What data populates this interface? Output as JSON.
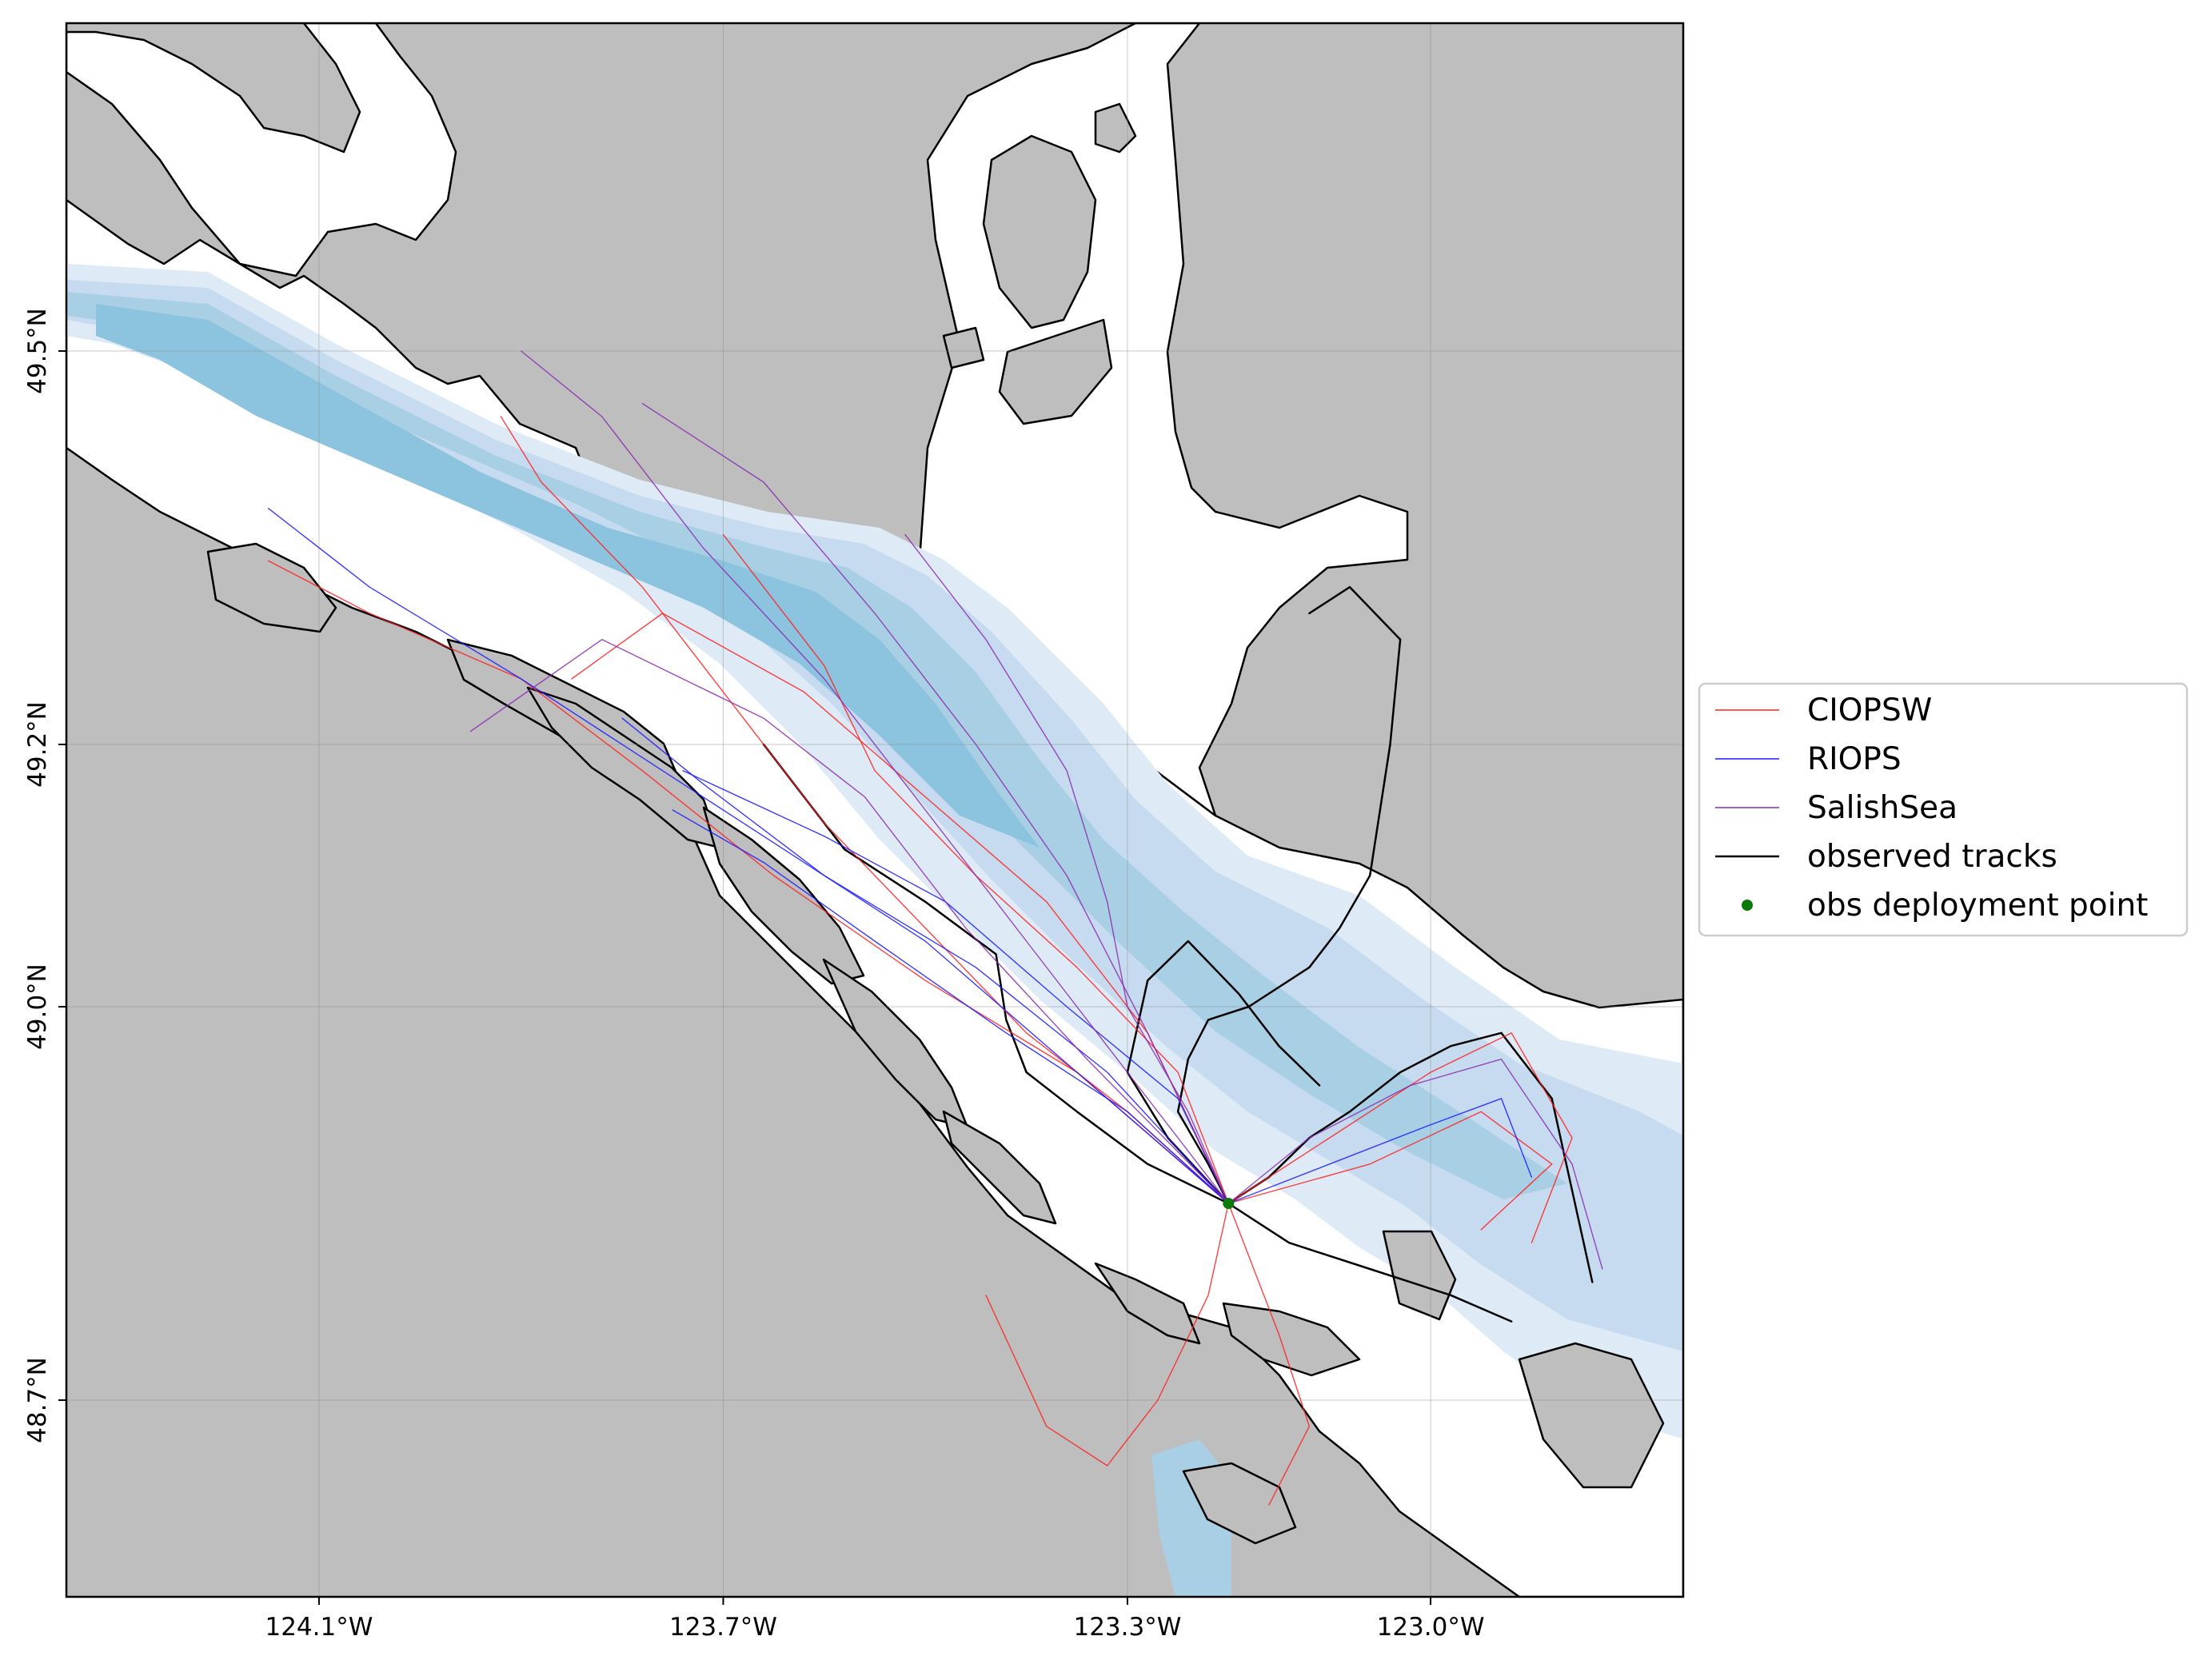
{
  "chart_data": {
    "type": "map",
    "projection": "geographic",
    "extent": {
      "lon": [
        -124.35,
        -122.75
      ],
      "lat": [
        48.55,
        49.75
      ]
    },
    "x_ticks": [
      {
        "value": -124.1,
        "label": "124.1°W"
      },
      {
        "value": -123.7,
        "label": "123.7°W"
      },
      {
        "value": -123.3,
        "label": "123.3°W"
      },
      {
        "value": -123.0,
        "label": "123.0°W"
      }
    ],
    "y_ticks": [
      {
        "value": 49.5,
        "label": "49.5°N"
      },
      {
        "value": 49.2,
        "label": "49.2°N"
      },
      {
        "value": 49.0,
        "label": "49.0°N"
      },
      {
        "value": 48.7,
        "label": "48.7°N"
      }
    ],
    "grid": true,
    "legend_position": "right",
    "legend": [
      {
        "label": "CIOPSW",
        "kind": "line",
        "color": "#ff2020"
      },
      {
        "label": "RIOPS",
        "kind": "line",
        "color": "#1a1aff"
      },
      {
        "label": "SalishSea",
        "kind": "line",
        "color": "#8a2bb0"
      },
      {
        "label": "observed tracks",
        "kind": "line",
        "color": "#000000"
      },
      {
        "label": "obs deployment point",
        "kind": "point",
        "color": "#0a7a0a"
      }
    ],
    "colors": {
      "land": "#bebebe",
      "coast": "#000000",
      "bathymetry": [
        "#f4f9ff",
        "#deebf7",
        "#c6dbef",
        "#a9cfe5",
        "#8cc3df"
      ]
    },
    "deployment_point": {
      "lon": -123.2,
      "lat": 48.85
    },
    "series": [
      {
        "name": "observed tracks",
        "color": "#000000",
        "tracks": [
          [
            [
              -123.2,
              48.85
            ],
            [
              -123.22,
              48.88
            ],
            [
              -123.25,
              48.92
            ],
            [
              -123.24,
              48.96
            ],
            [
              -123.22,
              48.99
            ],
            [
              -123.18,
              49.0
            ],
            [
              -123.12,
              49.03
            ],
            [
              -123.09,
              49.06
            ],
            [
              -123.06,
              49.1
            ],
            [
              -123.04,
              49.2
            ],
            [
              -123.03,
              49.28
            ],
            [
              -123.08,
              49.32
            ],
            [
              -123.12,
              49.3
            ]
          ],
          [
            [
              -123.2,
              48.85
            ],
            [
              -123.16,
              48.87
            ],
            [
              -123.12,
              48.9
            ],
            [
              -123.08,
              48.92
            ],
            [
              -123.03,
              48.95
            ],
            [
              -122.98,
              48.97
            ],
            [
              -122.93,
              48.98
            ],
            [
              -122.88,
              48.93
            ],
            [
              -122.86,
              48.86
            ],
            [
              -122.84,
              48.79
            ]
          ],
          [
            [
              -123.2,
              48.85
            ],
            [
              -123.28,
              48.88
            ],
            [
              -123.35,
              48.92
            ],
            [
              -123.4,
              48.95
            ],
            [
              -123.42,
              48.99
            ],
            [
              -123.43,
              49.04
            ],
            [
              -123.5,
              49.08
            ],
            [
              -123.58,
              49.12
            ],
            [
              -123.62,
              49.16
            ],
            [
              -123.66,
              49.2
            ]
          ],
          [
            [
              -123.2,
              48.85
            ],
            [
              -123.14,
              48.82
            ],
            [
              -123.06,
              48.8
            ],
            [
              -122.98,
              48.78
            ],
            [
              -122.92,
              48.76
            ]
          ],
          [
            [
              -123.2,
              48.85
            ],
            [
              -123.26,
              48.9
            ],
            [
              -123.3,
              48.95
            ],
            [
              -123.28,
              49.02
            ],
            [
              -123.24,
              49.05
            ],
            [
              -123.19,
              49.01
            ],
            [
              -123.15,
              48.97
            ],
            [
              -123.11,
              48.94
            ]
          ]
        ]
      },
      {
        "name": "CIOPSW",
        "color": "#ff2020",
        "tracks": [
          [
            [
              -123.2,
              48.85
            ],
            [
              -123.3,
              48.92
            ],
            [
              -123.4,
              48.98
            ],
            [
              -123.5,
              49.06
            ],
            [
              -123.6,
              49.14
            ],
            [
              -123.68,
              49.22
            ],
            [
              -123.78,
              49.32
            ],
            [
              -123.88,
              49.4
            ],
            [
              -123.92,
              49.45
            ]
          ],
          [
            [
              -123.2,
              48.85
            ],
            [
              -123.25,
              48.95
            ],
            [
              -123.35,
              49.03
            ],
            [
              -123.45,
              49.1
            ],
            [
              -123.55,
              49.18
            ],
            [
              -123.6,
              49.26
            ],
            [
              -123.7,
              49.36
            ]
          ],
          [
            [
              -123.2,
              48.85
            ],
            [
              -123.1,
              48.9
            ],
            [
              -123.0,
              48.95
            ],
            [
              -122.92,
              48.98
            ],
            [
              -122.86,
              48.9
            ],
            [
              -122.9,
              48.82
            ]
          ],
          [
            [
              -123.2,
              48.85
            ],
            [
              -123.22,
              48.78
            ],
            [
              -123.27,
              48.7
            ],
            [
              -123.32,
              48.65
            ],
            [
              -123.38,
              48.68
            ],
            [
              -123.44,
              48.78
            ]
          ],
          [
            [
              -123.2,
              48.85
            ],
            [
              -123.35,
              48.95
            ],
            [
              -123.5,
              49.02
            ],
            [
              -123.65,
              49.1
            ],
            [
              -123.78,
              49.18
            ],
            [
              -123.9,
              49.25
            ],
            [
              -124.05,
              49.3
            ],
            [
              -124.15,
              49.34
            ]
          ],
          [
            [
              -123.2,
              48.85
            ],
            [
              -123.15,
              48.75
            ],
            [
              -123.12,
              48.68
            ],
            [
              -123.16,
              48.62
            ]
          ],
          [
            [
              -123.2,
              48.85
            ],
            [
              -123.28,
              48.98
            ],
            [
              -123.38,
              49.08
            ],
            [
              -123.5,
              49.16
            ],
            [
              -123.62,
              49.24
            ],
            [
              -123.76,
              49.3
            ],
            [
              -123.85,
              49.25
            ]
          ],
          [
            [
              -123.2,
              48.85
            ],
            [
              -123.06,
              48.88
            ],
            [
              -122.95,
              48.92
            ],
            [
              -122.88,
              48.88
            ],
            [
              -122.95,
              48.83
            ]
          ]
        ]
      },
      {
        "name": "RIOPS",
        "color": "#1a1aff",
        "tracks": [
          [
            [
              -123.2,
              48.85
            ],
            [
              -123.3,
              48.92
            ],
            [
              -123.42,
              48.98
            ],
            [
              -123.55,
              49.05
            ],
            [
              -123.66,
              49.11
            ],
            [
              -123.75,
              49.15
            ]
          ],
          [
            [
              -123.2,
              48.85
            ],
            [
              -123.35,
              48.95
            ],
            [
              -123.5,
              49.05
            ],
            [
              -123.7,
              49.15
            ],
            [
              -123.9,
              49.25
            ],
            [
              -124.05,
              49.32
            ],
            [
              -124.15,
              49.38
            ]
          ],
          [
            [
              -123.2,
              48.85
            ],
            [
              -123.25,
              48.93
            ],
            [
              -123.36,
              49.0
            ],
            [
              -123.48,
              49.08
            ],
            [
              -123.6,
              49.13
            ],
            [
              -123.74,
              49.18
            ]
          ],
          [
            [
              -123.2,
              48.85
            ],
            [
              -123.1,
              48.88
            ],
            [
              -123.0,
              48.91
            ],
            [
              -122.93,
              48.93
            ],
            [
              -122.9,
              48.87
            ]
          ],
          [
            [
              -123.2,
              48.85
            ],
            [
              -123.32,
              48.95
            ],
            [
              -123.45,
              49.03
            ],
            [
              -123.6,
              49.1
            ],
            [
              -123.72,
              49.17
            ],
            [
              -123.8,
              49.22
            ]
          ]
        ]
      },
      {
        "name": "SalishSea",
        "color": "#8a2bb0",
        "tracks": [
          [
            [
              -123.2,
              48.85
            ],
            [
              -123.3,
              48.95
            ],
            [
              -123.4,
              49.05
            ],
            [
              -123.5,
              49.15
            ],
            [
              -123.6,
              49.25
            ],
            [
              -123.72,
              49.35
            ],
            [
              -123.82,
              49.45
            ],
            [
              -123.9,
              49.5
            ]
          ],
          [
            [
              -123.2,
              48.85
            ],
            [
              -123.28,
              48.98
            ],
            [
              -123.36,
              49.1
            ],
            [
              -123.45,
              49.2
            ],
            [
              -123.55,
              49.3
            ],
            [
              -123.66,
              49.4
            ],
            [
              -123.78,
              49.46
            ]
          ],
          [
            [
              -123.2,
              48.85
            ],
            [
              -123.12,
              48.9
            ],
            [
              -123.02,
              48.94
            ],
            [
              -122.93,
              48.96
            ],
            [
              -122.86,
              48.88
            ],
            [
              -122.83,
              48.8
            ]
          ],
          [
            [
              -123.2,
              48.85
            ],
            [
              -123.34,
              48.96
            ],
            [
              -123.46,
              49.06
            ],
            [
              -123.56,
              49.16
            ],
            [
              -123.66,
              49.22
            ],
            [
              -123.82,
              49.28
            ],
            [
              -123.95,
              49.21
            ]
          ],
          [
            [
              -123.2,
              48.85
            ],
            [
              -123.24,
              48.92
            ],
            [
              -123.3,
              49.0
            ],
            [
              -123.32,
              49.08
            ],
            [
              -123.36,
              49.18
            ],
            [
              -123.44,
              49.28
            ],
            [
              -123.52,
              49.36
            ]
          ]
        ]
      }
    ]
  }
}
